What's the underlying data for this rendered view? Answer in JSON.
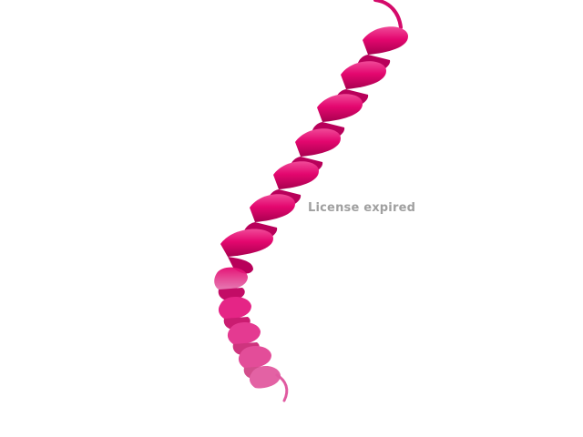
{
  "watermark": {
    "text": "License expired",
    "color": "#a0a0a0"
  },
  "molecule": {
    "representation": "cartoon-alpha-helix",
    "colors": {
      "helix_main": "#e4076f",
      "helix_dark": "#a8004f",
      "helix_light": "#f24a98",
      "helix_faded": "#e05aa0"
    }
  },
  "background": "#ffffff"
}
